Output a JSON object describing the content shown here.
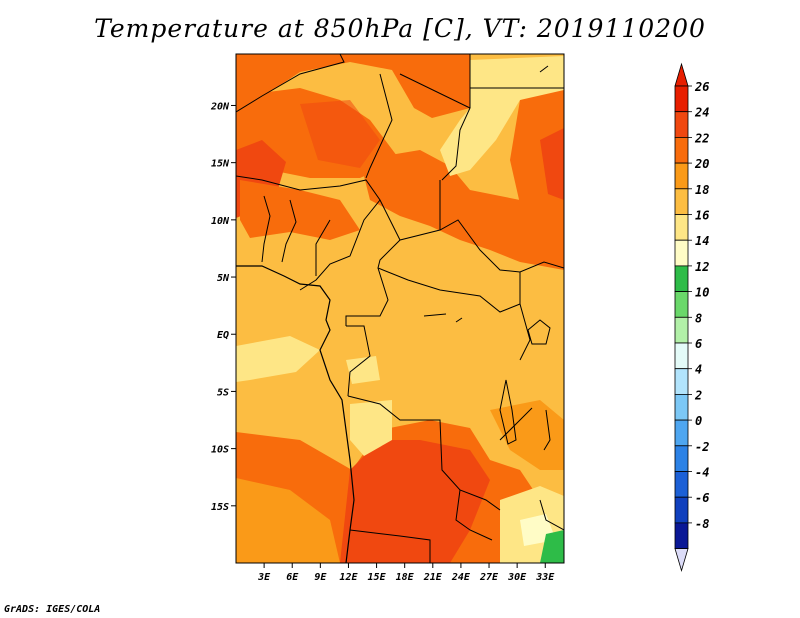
{
  "title": "Temperature at 850hPa [C], VT: 2019110200",
  "credit": "GrADS: IGES/COLA",
  "map": {
    "lon_range": [
      0,
      35
    ],
    "lat_range": [
      -20,
      24.5
    ],
    "lon_ticks": [
      {
        "value": 3,
        "label": "3E"
      },
      {
        "value": 6,
        "label": "6E"
      },
      {
        "value": 9,
        "label": "9E"
      },
      {
        "value": 12,
        "label": "12E"
      },
      {
        "value": 15,
        "label": "15E"
      },
      {
        "value": 18,
        "label": "18E"
      },
      {
        "value": 21,
        "label": "21E"
      },
      {
        "value": 24,
        "label": "24E"
      },
      {
        "value": 27,
        "label": "27E"
      },
      {
        "value": 30,
        "label": "30E"
      },
      {
        "value": 33,
        "label": "33E"
      }
    ],
    "lat_ticks": [
      {
        "value": 20,
        "label": "20N"
      },
      {
        "value": 15,
        "label": "15N"
      },
      {
        "value": 10,
        "label": "10N"
      },
      {
        "value": 5,
        "label": "5N"
      },
      {
        "value": 0,
        "label": "EQ"
      },
      {
        "value": -5,
        "label": "5S"
      },
      {
        "value": -10,
        "label": "10S"
      },
      {
        "value": -15,
        "label": "15S"
      }
    ]
  },
  "colorbar": {
    "bins": [
      {
        "label": "26",
        "color": "#e81e00"
      },
      {
        "label": "24",
        "color": "#f04810"
      },
      {
        "label": "22",
        "color": "#f86c0c"
      },
      {
        "label": "20",
        "color": "#fa9a18"
      },
      {
        "label": "18",
        "color": "#fcbd42"
      },
      {
        "label": "16",
        "color": "#fee686"
      },
      {
        "label": "14",
        "color": "#fffcc6"
      },
      {
        "label": "12",
        "color": "#2ebc48"
      },
      {
        "label": "10",
        "color": "#6ad86a"
      },
      {
        "label": "8",
        "color": "#b2f0a8"
      },
      {
        "label": "6",
        "color": "#e4fbf8"
      },
      {
        "label": "4",
        "color": "#b2e4fc"
      },
      {
        "label": "2",
        "color": "#7cc8f6"
      },
      {
        "label": "0",
        "color": "#4ea6f0"
      },
      {
        "label": "-2",
        "color": "#2c82e6"
      },
      {
        "label": "-4",
        "color": "#1c60d6"
      },
      {
        "label": "-6",
        "color": "#1040be"
      },
      {
        "label": "-8",
        "color": "#0a1896"
      }
    ],
    "bottom_color": "#dcdcf8"
  }
}
